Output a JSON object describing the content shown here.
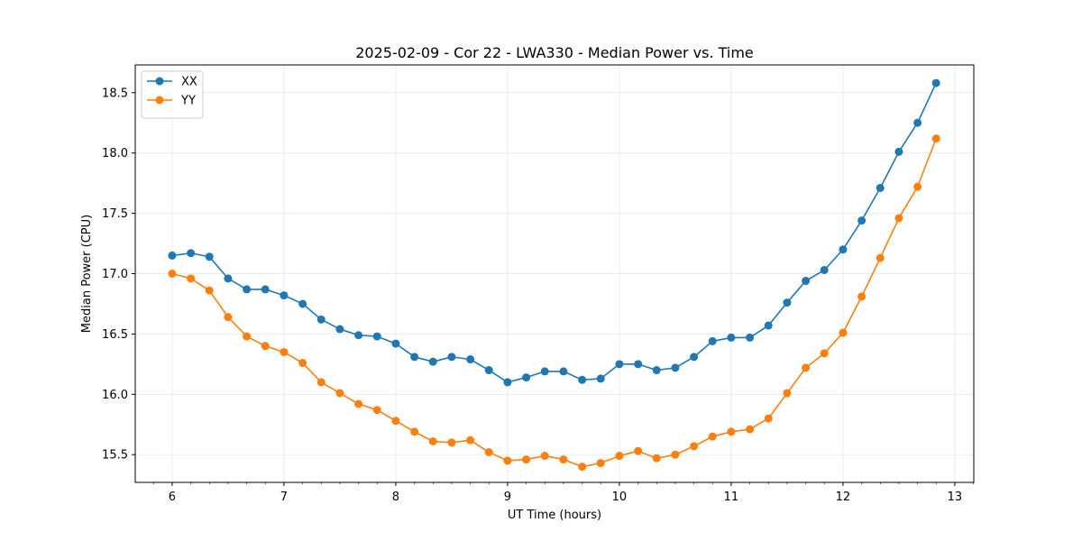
{
  "chart_data": {
    "type": "line",
    "title": "2025-02-09 - Cor 22 - LWA330 - Median Power vs. Time",
    "xlabel": "UT Time (hours)",
    "ylabel": "Median Power (CPU)",
    "xlim": [
      5.67,
      13.17
    ],
    "ylim": [
      15.27,
      18.73
    ],
    "xticks": [
      6,
      7,
      8,
      9,
      10,
      11,
      12,
      13
    ],
    "yticks": [
      15.5,
      16.0,
      16.5,
      17.0,
      17.5,
      18.0,
      18.5
    ],
    "grid": true,
    "legend_position": "top-left",
    "x": [
      6.0,
      6.167,
      6.333,
      6.5,
      6.667,
      6.833,
      7.0,
      7.167,
      7.333,
      7.5,
      7.667,
      7.833,
      8.0,
      8.167,
      8.333,
      8.5,
      8.667,
      8.833,
      9.0,
      9.167,
      9.333,
      9.5,
      9.667,
      9.833,
      10.0,
      10.167,
      10.333,
      10.5,
      10.667,
      10.833,
      11.0,
      11.167,
      11.333,
      11.5,
      11.667,
      11.833,
      12.0,
      12.167,
      12.333,
      12.5,
      12.667,
      12.833
    ],
    "series": [
      {
        "name": "XX",
        "color": "#1f77b4",
        "values": [
          17.15,
          17.17,
          17.14,
          16.96,
          16.87,
          16.87,
          16.82,
          16.75,
          16.62,
          16.54,
          16.49,
          16.48,
          16.42,
          16.31,
          16.27,
          16.31,
          16.29,
          16.2,
          16.1,
          16.14,
          16.19,
          16.19,
          16.12,
          16.13,
          16.25,
          16.25,
          16.2,
          16.22,
          16.31,
          16.44,
          16.47,
          16.47,
          16.57,
          16.76,
          16.94,
          17.03,
          17.2,
          17.44,
          17.71,
          18.01,
          18.25,
          18.58
        ]
      },
      {
        "name": "YY",
        "color": "#ff7f0e",
        "values": [
          17.0,
          16.96,
          16.86,
          16.64,
          16.48,
          16.4,
          16.35,
          16.26,
          16.1,
          16.01,
          15.92,
          15.87,
          15.78,
          15.69,
          15.61,
          15.6,
          15.62,
          15.52,
          15.45,
          15.46,
          15.49,
          15.46,
          15.4,
          15.43,
          15.49,
          15.53,
          15.47,
          15.5,
          15.57,
          15.65,
          15.69,
          15.71,
          15.8,
          16.01,
          16.22,
          16.34,
          16.51,
          16.81,
          17.13,
          17.46,
          17.72,
          18.12
        ]
      }
    ]
  }
}
